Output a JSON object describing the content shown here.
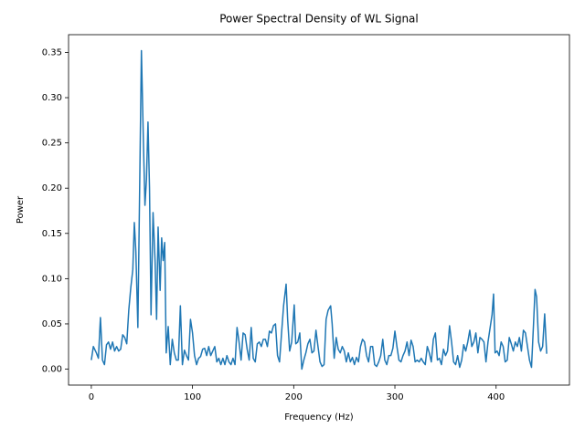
{
  "chart_data": {
    "type": "line",
    "title": "Power Spectral Density of WL Signal",
    "x_label": "Frequency (Hz)",
    "y_label": "Power",
    "x": [
      0,
      2,
      5,
      7,
      9,
      11,
      13,
      15,
      17,
      19,
      21,
      23,
      25,
      27,
      29,
      31,
      33,
      35,
      37,
      39,
      41,
      42.5,
      44,
      46,
      49.5,
      51.5,
      53,
      54.5,
      56,
      57.5,
      59,
      61,
      63,
      64.5,
      66,
      68,
      69.5,
      71,
      72.5,
      74,
      76,
      78,
      80,
      82,
      84,
      86,
      88,
      90,
      92,
      94,
      96,
      98,
      100,
      102,
      104,
      106,
      108,
      110,
      112,
      114,
      116,
      118,
      120,
      122,
      124,
      126,
      128,
      130,
      132,
      134,
      136,
      138,
      140,
      142,
      144,
      146,
      148,
      150,
      152,
      154,
      156,
      158,
      160,
      162,
      164,
      166,
      168,
      170,
      172,
      174,
      176,
      178,
      180,
      182,
      184,
      186,
      188,
      190,
      192.5,
      194,
      196,
      198,
      200.5,
      202,
      204,
      206,
      208,
      210,
      212,
      214,
      216,
      218,
      220,
      222,
      224,
      226,
      228,
      230,
      232,
      234,
      236.5,
      238,
      240,
      242,
      244,
      246,
      248,
      250,
      252,
      254,
      256,
      258,
      260,
      262,
      264,
      266,
      268,
      270,
      272,
      274,
      276,
      278,
      280,
      282,
      284,
      286,
      288,
      290,
      292,
      294,
      296,
      298,
      300,
      302,
      304,
      306,
      308,
      310,
      312,
      314,
      316,
      318,
      320,
      322,
      324,
      326,
      328,
      330,
      332,
      334,
      336,
      338,
      340,
      342,
      344,
      346,
      348,
      350,
      352,
      354,
      356,
      358,
      360,
      362,
      364,
      366,
      368,
      370,
      372,
      374,
      376,
      378,
      380,
      382,
      384,
      386,
      388,
      390,
      392,
      394,
      396,
      397.5,
      399,
      401,
      403,
      405,
      407,
      409,
      411,
      413,
      415,
      417,
      419,
      421,
      423,
      425,
      427,
      429,
      431,
      433,
      435,
      437,
      438.5,
      440,
      442,
      444,
      446,
      448,
      450
    ],
    "series": [
      {
        "color": "#1f77b4",
        "values": [
          0.01,
          0.025,
          0.018,
          0.012,
          0.057,
          0.01,
          0.005,
          0.027,
          0.03,
          0.022,
          0.03,
          0.02,
          0.025,
          0.02,
          0.022,
          0.038,
          0.035,
          0.028,
          0.065,
          0.09,
          0.11,
          0.162,
          0.13,
          0.046,
          0.352,
          0.25,
          0.181,
          0.21,
          0.273,
          0.2,
          0.06,
          0.173,
          0.12,
          0.055,
          0.157,
          0.087,
          0.145,
          0.12,
          0.14,
          0.018,
          0.047,
          0.005,
          0.033,
          0.018,
          0.01,
          0.01,
          0.07,
          0.005,
          0.021,
          0.015,
          0.01,
          0.055,
          0.04,
          0.015,
          0.005,
          0.012,
          0.014,
          0.022,
          0.023,
          0.015,
          0.025,
          0.015,
          0.02,
          0.025,
          0.008,
          0.012,
          0.005,
          0.012,
          0.005,
          0.015,
          0.008,
          0.005,
          0.012,
          0.005,
          0.046,
          0.03,
          0.01,
          0.04,
          0.038,
          0.022,
          0.01,
          0.046,
          0.012,
          0.008,
          0.028,
          0.03,
          0.025,
          0.033,
          0.033,
          0.025,
          0.042,
          0.04,
          0.048,
          0.05,
          0.015,
          0.008,
          0.04,
          0.07,
          0.094,
          0.055,
          0.02,
          0.03,
          0.071,
          0.028,
          0.03,
          0.04,
          0.0,
          0.01,
          0.018,
          0.028,
          0.033,
          0.018,
          0.02,
          0.043,
          0.025,
          0.008,
          0.003,
          0.005,
          0.055,
          0.065,
          0.07,
          0.05,
          0.012,
          0.035,
          0.022,
          0.018,
          0.025,
          0.02,
          0.008,
          0.018,
          0.008,
          0.013,
          0.005,
          0.013,
          0.008,
          0.025,
          0.033,
          0.03,
          0.015,
          0.008,
          0.025,
          0.025,
          0.005,
          0.003,
          0.008,
          0.015,
          0.033,
          0.01,
          0.005,
          0.015,
          0.015,
          0.023,
          0.042,
          0.025,
          0.01,
          0.008,
          0.015,
          0.02,
          0.03,
          0.015,
          0.032,
          0.025,
          0.008,
          0.01,
          0.008,
          0.012,
          0.008,
          0.005,
          0.025,
          0.018,
          0.008,
          0.033,
          0.04,
          0.01,
          0.012,
          0.005,
          0.022,
          0.015,
          0.02,
          0.048,
          0.03,
          0.008,
          0.005,
          0.015,
          0.002,
          0.01,
          0.027,
          0.02,
          0.03,
          0.043,
          0.025,
          0.03,
          0.04,
          0.018,
          0.035,
          0.033,
          0.03,
          0.008,
          0.03,
          0.045,
          0.06,
          0.083,
          0.018,
          0.02,
          0.015,
          0.03,
          0.025,
          0.008,
          0.01,
          0.035,
          0.028,
          0.02,
          0.03,
          0.025,
          0.035,
          0.02,
          0.043,
          0.04,
          0.025,
          0.01,
          0.002,
          0.05,
          0.088,
          0.08,
          0.03,
          0.02,
          0.025,
          0.061,
          0.017
        ]
      }
    ],
    "xlim": [
      -22.5,
      472.5
    ],
    "xticks": [
      0,
      100,
      200,
      300,
      400
    ],
    "ylim": [
      -0.0176,
      0.3696
    ],
    "yticks": [
      {
        "value": 0,
        "label": "0.00"
      },
      {
        "value": 0.05,
        "label": "0.05"
      },
      {
        "value": 0.1,
        "label": "0.10"
      },
      {
        "value": 0.15,
        "label": "0.15"
      },
      {
        "value": 0.2,
        "label": "0.20"
      },
      {
        "value": 0.25,
        "label": "0.25"
      },
      {
        "value": 0.3,
        "label": "0.30"
      },
      {
        "value": 0.35,
        "label": "0.35"
      }
    ],
    "grid": false
  }
}
